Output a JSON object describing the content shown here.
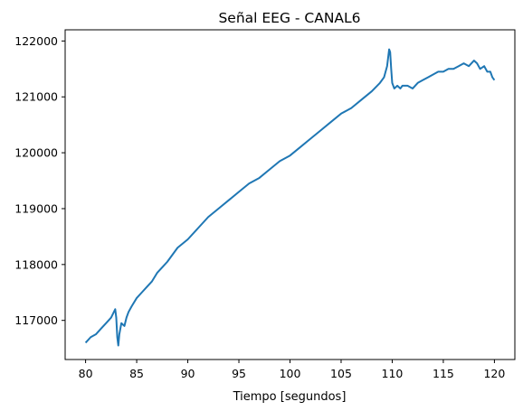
{
  "chart_data": {
    "type": "line",
    "title": "Señal EEG - CANAL6",
    "xlabel": "Tiempo [segundos]",
    "ylabel": "",
    "xlim": [
      78.0,
      122.0
    ],
    "ylim": [
      116300,
      122200
    ],
    "x_ticks": [
      80,
      85,
      90,
      95,
      100,
      105,
      110,
      115,
      120
    ],
    "y_ticks": [
      117000,
      118000,
      119000,
      120000,
      121000,
      122000
    ],
    "x_tick_labels": [
      "80",
      "85",
      "90",
      "95",
      "100",
      "105",
      "110",
      "115",
      "120"
    ],
    "y_tick_labels": [
      "117000",
      "118000",
      "119000",
      "120000",
      "121000",
      "122000"
    ],
    "grid": false,
    "legend": "none",
    "series": [
      {
        "color": "#1f77b4",
        "x": [
          80.0,
          80.5,
          81.0,
          81.5,
          82.0,
          82.5,
          82.9,
          83.0,
          83.1,
          83.2,
          83.3,
          83.5,
          83.8,
          84.0,
          84.2,
          84.5,
          85.0,
          85.5,
          86.0,
          86.5,
          87.0,
          87.5,
          88.0,
          89.0,
          90.0,
          91.0,
          92.0,
          93.0,
          94.0,
          95.0,
          96.0,
          97.0,
          98.0,
          99.0,
          100.0,
          101.0,
          102.0,
          103.0,
          104.0,
          105.0,
          106.0,
          107.0,
          108.0,
          108.8,
          109.2,
          109.5,
          109.7,
          109.8,
          109.9,
          110.0,
          110.2,
          110.5,
          110.8,
          111.0,
          111.5,
          112.0,
          112.5,
          113.0,
          113.5,
          114.0,
          114.5,
          115.0,
          115.5,
          116.0,
          116.5,
          117.0,
          117.5,
          118.0,
          118.3,
          118.6,
          119.0,
          119.3,
          119.6,
          119.8,
          120.0
        ],
        "values": [
          116600,
          116700,
          116750,
          116850,
          116950,
          117050,
          117200,
          117050,
          116700,
          116550,
          116750,
          116950,
          116900,
          117050,
          117150,
          117250,
          117400,
          117500,
          117600,
          117700,
          117850,
          117950,
          118050,
          118300,
          118450,
          118650,
          118850,
          119000,
          119150,
          119300,
          119450,
          119550,
          119700,
          119850,
          119950,
          120100,
          120250,
          120400,
          120550,
          120700,
          120800,
          120950,
          121100,
          121250,
          121350,
          121550,
          121850,
          121800,
          121500,
          121250,
          121150,
          121200,
          121150,
          121200,
          121200,
          121150,
          121250,
          121300,
          121350,
          121400,
          121450,
          121450,
          121500,
          121500,
          121550,
          121600,
          121550,
          121650,
          121600,
          121500,
          121550,
          121450,
          121450,
          121350,
          121300
        ]
      }
    ]
  }
}
